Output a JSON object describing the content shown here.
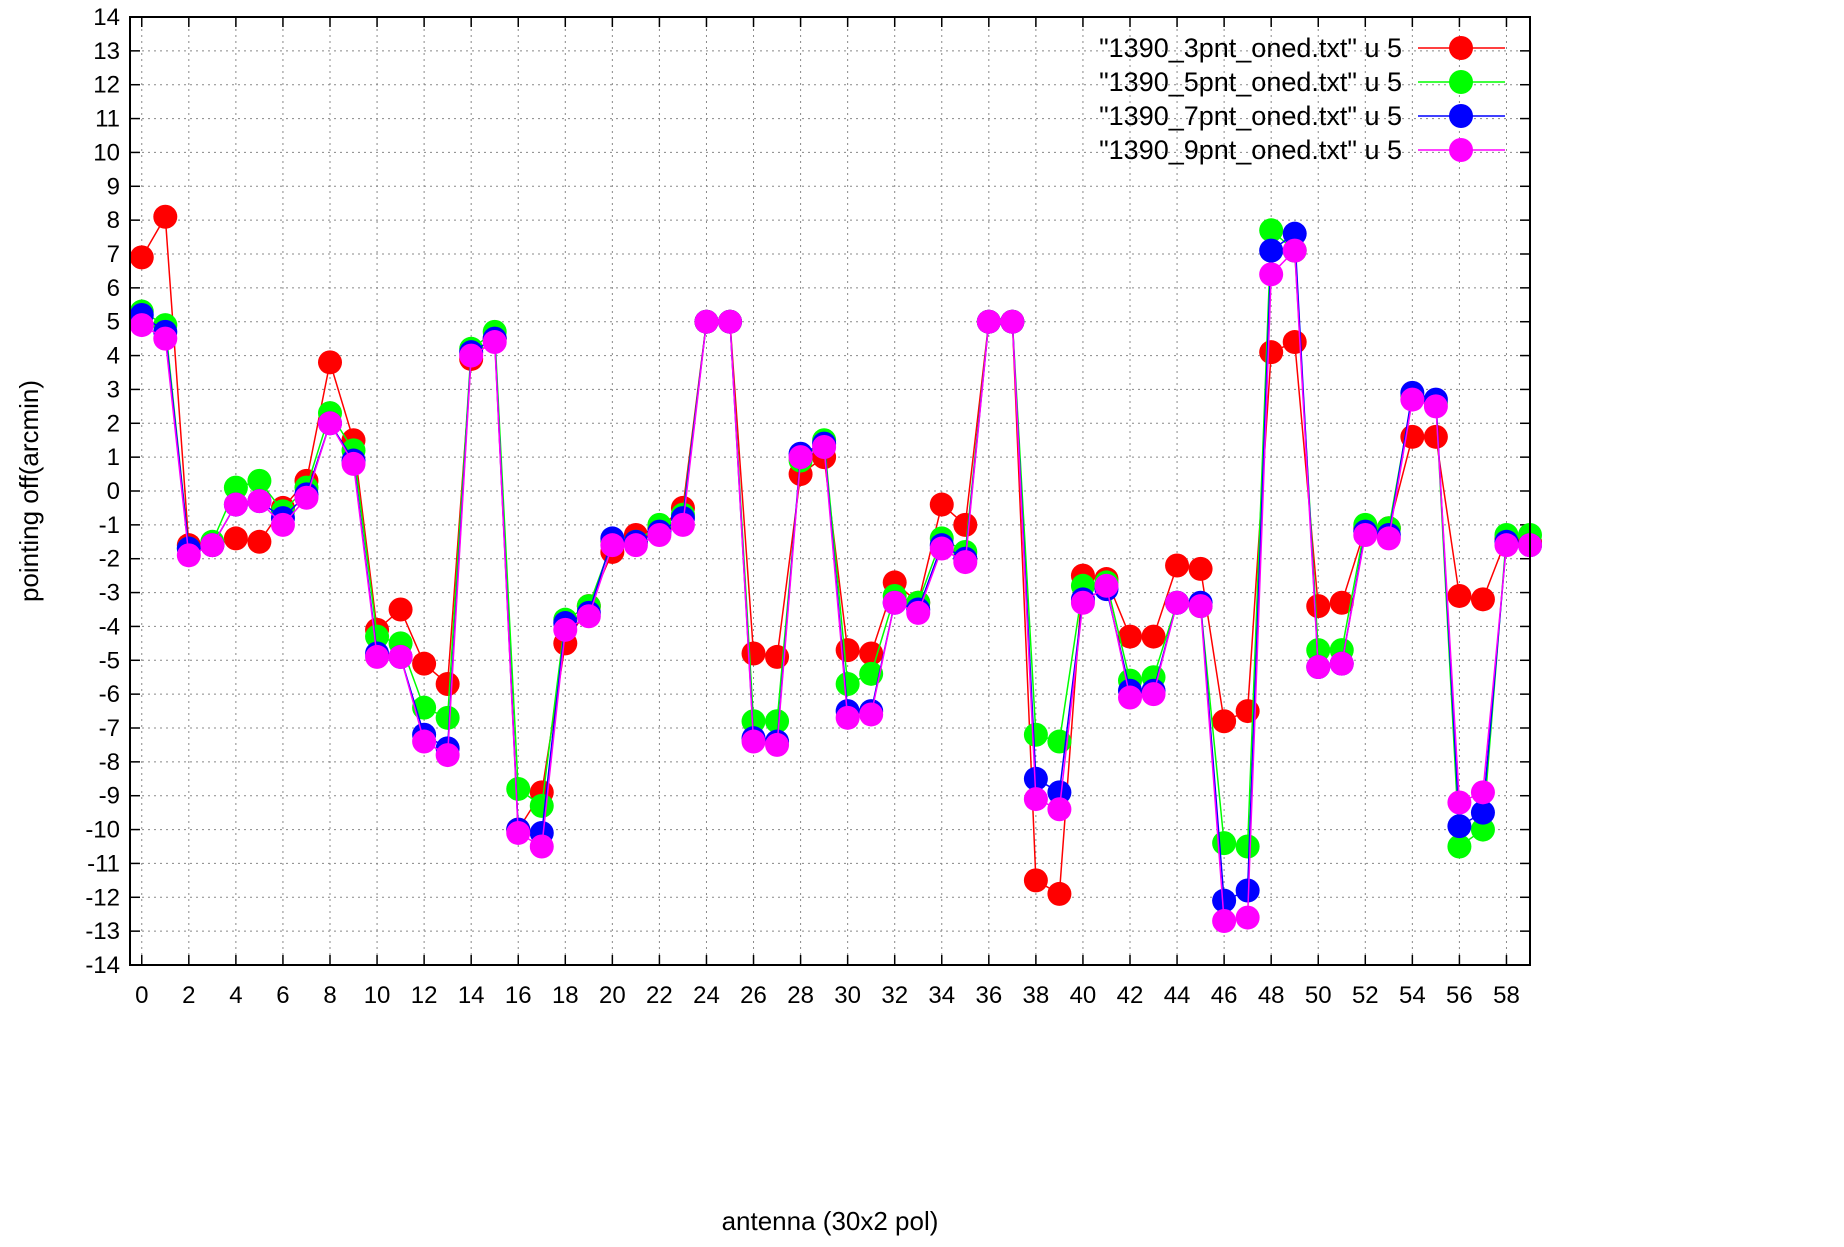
{
  "chart_data": {
    "type": "line",
    "xlabel": "antenna (30x2 pol)",
    "ylabel": "pointing off(arcmin)",
    "xlim": [
      -0.5,
      59
    ],
    "ylim": [
      -14,
      14
    ],
    "x_ticks": [
      0,
      2,
      4,
      6,
      8,
      10,
      12,
      14,
      16,
      18,
      20,
      22,
      24,
      26,
      28,
      30,
      32,
      34,
      36,
      38,
      40,
      42,
      44,
      46,
      48,
      50,
      52,
      54,
      56,
      58
    ],
    "y_ticks": [
      -14,
      -13,
      -12,
      -11,
      -10,
      -9,
      -8,
      -7,
      -6,
      -5,
      -4,
      -3,
      -2,
      -1,
      0,
      1,
      2,
      3,
      4,
      5,
      6,
      7,
      8,
      9,
      10,
      11,
      12,
      13,
      14
    ],
    "grid": true,
    "legend_position": "top-right",
    "x": [
      0,
      1,
      2,
      3,
      4,
      5,
      6,
      7,
      8,
      9,
      10,
      11,
      12,
      13,
      14,
      15,
      16,
      17,
      18,
      19,
      20,
      21,
      22,
      23,
      24,
      25,
      26,
      27,
      28,
      29,
      30,
      31,
      32,
      33,
      34,
      35,
      36,
      37,
      38,
      39,
      40,
      41,
      42,
      43,
      44,
      45,
      46,
      47,
      48,
      49,
      50,
      51,
      52,
      53,
      54,
      55,
      56,
      57,
      58,
      59
    ],
    "series": [
      {
        "name": "\"1390_3pnt_oned.txt\" u 5",
        "color": "#ff0000",
        "values": [
          6.9,
          8.1,
          -1.6,
          -1.6,
          -1.4,
          -1.5,
          -0.5,
          0.3,
          3.8,
          1.5,
          -4.1,
          -3.5,
          -5.1,
          -5.7,
          3.9,
          4.5,
          -10.0,
          -8.9,
          -4.5,
          -3.4,
          -1.8,
          -1.3,
          -1.1,
          -0.5,
          5.0,
          5.0,
          -4.8,
          -4.9,
          0.5,
          1.0,
          -4.7,
          -4.8,
          -2.7,
          -3.3,
          -0.4,
          -1.0,
          5.0,
          5.0,
          -11.5,
          -11.9,
          -2.5,
          -2.6,
          -4.3,
          -4.3,
          -2.2,
          -2.3,
          -6.8,
          -6.5,
          4.1,
          4.4,
          -3.4,
          -3.3,
          -1.1,
          -1.1,
          1.6,
          1.6,
          -3.1,
          -3.2,
          -1.4,
          -1.5
        ]
      },
      {
        "name": "\"1390_5pnt_oned.txt\" u 5",
        "color": "#00ff00",
        "values": [
          5.3,
          4.9,
          -1.7,
          -1.5,
          0.1,
          0.3,
          -0.6,
          0.1,
          2.3,
          1.2,
          -4.3,
          -4.5,
          -6.4,
          -6.7,
          4.2,
          4.7,
          -8.8,
          -9.3,
          -3.8,
          -3.4,
          -1.5,
          -1.5,
          -1.0,
          -0.7,
          5.0,
          5.0,
          -6.8,
          -6.8,
          0.9,
          1.5,
          -5.7,
          -5.4,
          -3.1,
          -3.3,
          -1.4,
          -1.8,
          5.0,
          5.0,
          -7.2,
          -7.4,
          -2.8,
          -2.7,
          -5.6,
          -5.5,
          -3.3,
          -3.4,
          -10.4,
          -10.5,
          7.7,
          7.1,
          -4.7,
          -4.7,
          -1.0,
          -1.1,
          2.8,
          2.6,
          -10.5,
          -10.0,
          -1.3,
          -1.3
        ]
      },
      {
        "name": "\"1390_7pnt_oned.txt\" u 5",
        "color": "#0000ff",
        "values": [
          5.2,
          4.7,
          -1.7,
          -1.6,
          -0.4,
          -0.3,
          -0.8,
          -0.1,
          2.0,
          0.9,
          -4.8,
          -4.9,
          -7.2,
          -7.6,
          4.1,
          4.5,
          -10.0,
          -10.1,
          -3.9,
          -3.6,
          -1.4,
          -1.5,
          -1.2,
          -0.8,
          5.0,
          5.0,
          -7.3,
          -7.4,
          1.1,
          1.4,
          -6.5,
          -6.5,
          -3.3,
          -3.5,
          -1.6,
          -2.0,
          5.0,
          5.0,
          -8.5,
          -8.9,
          -3.2,
          -2.9,
          -5.9,
          -5.9,
          -3.3,
          -3.3,
          -12.1,
          -11.8,
          7.1,
          7.6,
          -5.2,
          -5.1,
          -1.2,
          -1.3,
          2.9,
          2.7,
          -9.9,
          -9.5,
          -1.5,
          -1.6
        ]
      },
      {
        "name": "\"1390_9pnt_oned.txt\" u 5",
        "color": "#ff00ff",
        "values": [
          4.9,
          4.5,
          -1.9,
          -1.6,
          -0.4,
          -0.3,
          -1.0,
          -0.2,
          2.0,
          0.8,
          -4.9,
          -4.9,
          -7.4,
          -7.8,
          4.0,
          4.4,
          -10.1,
          -10.5,
          -4.1,
          -3.7,
          -1.6,
          -1.6,
          -1.3,
          -1.0,
          5.0,
          5.0,
          -7.4,
          -7.5,
          1.0,
          1.3,
          -6.7,
          -6.6,
          -3.3,
          -3.6,
          -1.7,
          -2.1,
          5.0,
          5.0,
          -9.1,
          -9.4,
          -3.3,
          -2.8,
          -6.1,
          -6.0,
          -3.3,
          -3.4,
          -12.7,
          -12.6,
          6.4,
          7.1,
          -5.2,
          -5.1,
          -1.3,
          -1.4,
          2.7,
          2.5,
          -9.2,
          -8.9,
          -1.6,
          -1.6
        ]
      }
    ]
  }
}
